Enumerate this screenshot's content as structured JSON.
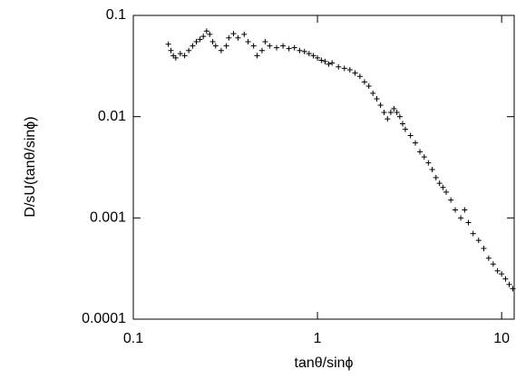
{
  "chart_data": {
    "type": "scatter",
    "xlabel": "tanθ/sinϕ",
    "ylabel": "D/sU(tanθ/sinϕ)",
    "xscale": "log",
    "yscale": "log",
    "xlim": [
      0.1,
      11.7
    ],
    "ylim": [
      0.0001,
      0.1
    ],
    "xticks": [
      0.1,
      1,
      10
    ],
    "yticks": [
      0.0001,
      0.001,
      0.01,
      0.1
    ],
    "marker": "+",
    "color": "#000000",
    "x": [
      0.155,
      0.16,
      0.165,
      0.17,
      0.18,
      0.19,
      0.2,
      0.21,
      0.22,
      0.23,
      0.24,
      0.25,
      0.26,
      0.27,
      0.28,
      0.3,
      0.32,
      0.33,
      0.35,
      0.37,
      0.4,
      0.42,
      0.45,
      0.47,
      0.5,
      0.52,
      0.55,
      0.6,
      0.65,
      0.7,
      0.75,
      0.8,
      0.85,
      0.9,
      0.95,
      1.0,
      1.05,
      1.1,
      1.15,
      1.2,
      1.3,
      1.4,
      1.5,
      1.6,
      1.7,
      1.8,
      1.9,
      2.0,
      2.1,
      2.2,
      2.3,
      2.4,
      2.5,
      2.6,
      2.7,
      2.8,
      2.9,
      3.0,
      3.2,
      3.4,
      3.6,
      3.8,
      4.0,
      4.2,
      4.4,
      4.6,
      4.8,
      5.0,
      5.3,
      5.6,
      6.0,
      6.3,
      6.6,
      7.0,
      7.5,
      8.0,
      8.5,
      9.0,
      9.5,
      10.0,
      10.5,
      11.0,
      11.5
    ],
    "values": [
      0.052,
      0.045,
      0.04,
      0.038,
      0.042,
      0.04,
      0.045,
      0.05,
      0.055,
      0.058,
      0.062,
      0.07,
      0.065,
      0.055,
      0.05,
      0.045,
      0.05,
      0.06,
      0.066,
      0.06,
      0.065,
      0.055,
      0.05,
      0.04,
      0.045,
      0.055,
      0.05,
      0.048,
      0.05,
      0.047,
      0.048,
      0.045,
      0.044,
      0.042,
      0.04,
      0.038,
      0.036,
      0.035,
      0.033,
      0.034,
      0.031,
      0.03,
      0.029,
      0.027,
      0.025,
      0.022,
      0.02,
      0.017,
      0.015,
      0.013,
      0.011,
      0.0095,
      0.011,
      0.012,
      0.011,
      0.01,
      0.0085,
      0.0075,
      0.0065,
      0.0055,
      0.0045,
      0.004,
      0.0035,
      0.003,
      0.0025,
      0.0022,
      0.002,
      0.0018,
      0.0015,
      0.0012,
      0.001,
      0.0012,
      0.0009,
      0.0007,
      0.0006,
      0.0005,
      0.0004,
      0.00035,
      0.0003,
      0.00028,
      0.00025,
      0.00022,
      0.0002
    ]
  }
}
